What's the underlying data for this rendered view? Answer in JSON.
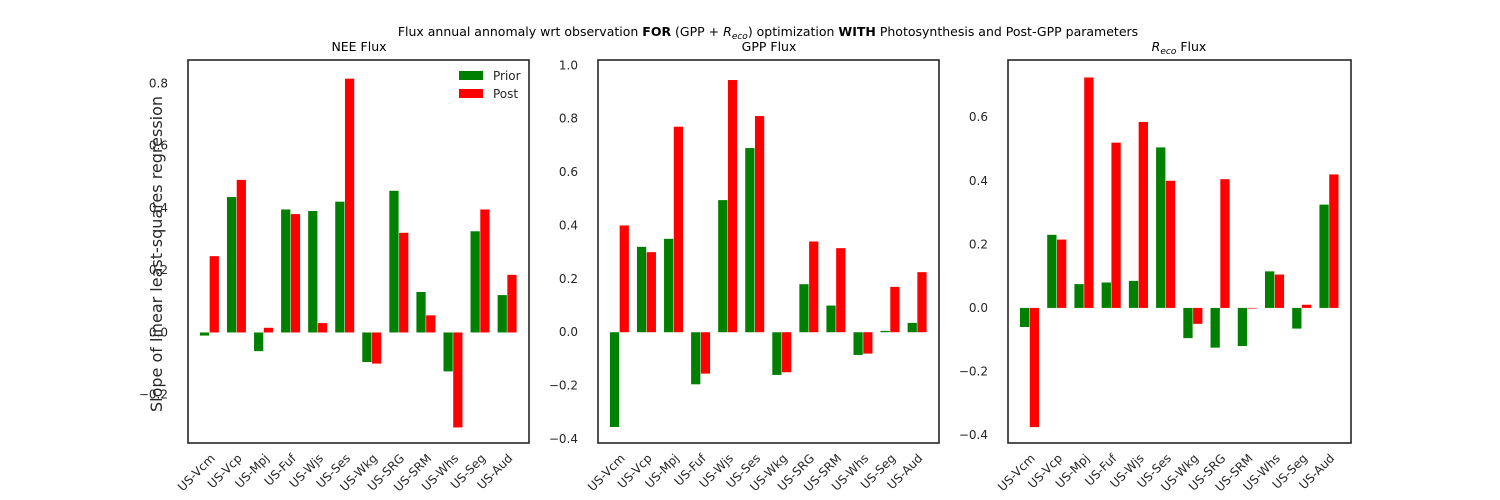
{
  "suptitle": {
    "pre": "Flux annual annomaly wrt observation ",
    "bold1": "FOR",
    "mid1": " (GPP + ",
    "r_base": "R",
    "r_sub": "eco",
    "mid2": ") optimization ",
    "bold2": "WITH",
    "post": " Photosynthesis and Post-GPP parameters"
  },
  "ylabel": "Slope of linear least-squares regression",
  "colors": {
    "prior": "#008000",
    "post": "#ff0000",
    "axes": "#262626"
  },
  "chart_data": [
    {
      "type": "bar",
      "title": "NEE Flux",
      "categories": [
        "US-Vcm",
        "US-Vcp",
        "US-Mpj",
        "US-Fuf",
        "US-Wjs",
        "US-Ses",
        "US-Wkg",
        "US-SRG",
        "US-SRM",
        "US-Whs",
        "US-Seg",
        "US-Aud"
      ],
      "series": [
        {
          "name": "Prior",
          "values": [
            -0.01,
            0.435,
            -0.06,
            0.395,
            0.39,
            0.42,
            -0.095,
            0.455,
            0.13,
            -0.125,
            0.325,
            0.12
          ]
        },
        {
          "name": "Post",
          "values": [
            0.245,
            0.49,
            0.015,
            0.38,
            0.03,
            0.815,
            -0.1,
            0.32,
            0.055,
            -0.305,
            0.395,
            0.185
          ]
        }
      ],
      "ylim": [
        -0.355,
        0.875
      ],
      "yticks": [
        -0.2,
        0.0,
        0.2,
        0.4,
        0.6,
        0.8
      ],
      "ytick_labels": [
        "−0.2",
        "0.0",
        "0.2",
        "0.4",
        "0.6",
        "0.8"
      ],
      "legend": "top-right"
    },
    {
      "type": "bar",
      "title": "GPP Flux",
      "categories": [
        "US-Vcm",
        "US-Vcp",
        "US-Mpj",
        "US-Fuf",
        "US-Wjs",
        "US-Ses",
        "US-Wkg",
        "US-SRG",
        "US-SRM",
        "US-Whs",
        "US-Seg",
        "US-Aud"
      ],
      "series": [
        {
          "name": "Prior",
          "values": [
            -0.355,
            0.32,
            0.35,
            -0.195,
            0.495,
            0.69,
            -0.16,
            0.18,
            0.1,
            -0.085,
            0.005,
            0.035
          ]
        },
        {
          "name": "Post",
          "values": [
            0.4,
            0.3,
            0.77,
            -0.155,
            0.945,
            0.81,
            -0.15,
            0.34,
            0.315,
            -0.08,
            0.17,
            0.225
          ]
        }
      ],
      "ylim": [
        -0.415,
        1.02
      ],
      "yticks": [
        -0.4,
        -0.2,
        0.0,
        0.2,
        0.4,
        0.6,
        0.8,
        1.0
      ],
      "ytick_labels": [
        "−0.4",
        "−0.2",
        "0.0",
        "0.2",
        "0.4",
        "0.6",
        "0.8",
        "1.0"
      ]
    },
    {
      "type": "bar",
      "title_base": "R",
      "title_sub": "eco",
      "title_rest": " Flux",
      "categories": [
        "US-Vcm",
        "US-Vcp",
        "US-Mpj",
        "US-Fuf",
        "US-Wjs",
        "US-Ses",
        "US-Wkg",
        "US-SRG",
        "US-SRM",
        "US-Whs",
        "US-Seg",
        "US-Aud"
      ],
      "series": [
        {
          "name": "Prior",
          "values": [
            -0.06,
            0.23,
            0.075,
            0.08,
            0.085,
            0.505,
            -0.095,
            -0.125,
            -0.12,
            0.115,
            -0.065,
            0.325
          ]
        },
        {
          "name": "Post",
          "values": [
            -0.375,
            0.215,
            0.725,
            0.52,
            0.585,
            0.4,
            -0.05,
            0.405,
            0.0,
            0.105,
            0.01,
            0.42
          ]
        }
      ],
      "ylim": [
        -0.425,
        0.78
      ],
      "yticks": [
        -0.4,
        -0.2,
        0.0,
        0.2,
        0.4,
        0.6
      ],
      "ytick_labels": [
        "−0.4",
        "−0.2",
        "0.0",
        "0.2",
        "0.4",
        "0.6"
      ]
    }
  ]
}
